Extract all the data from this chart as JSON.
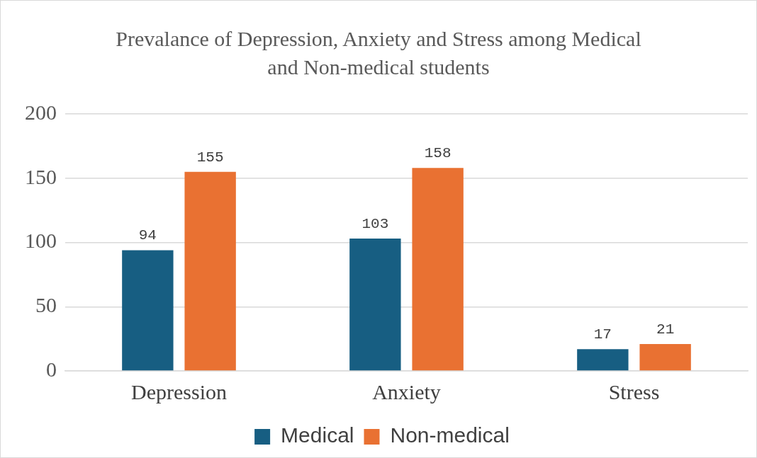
{
  "chart_data": {
    "type": "bar",
    "title": "Prevalance of Depression, Anxiety and Stress among Medical and Non-medical students",
    "categories": [
      "Depression",
      "Anxiety",
      "Stress"
    ],
    "series": [
      {
        "name": "Medical",
        "color": "#175e82",
        "values": [
          94,
          103,
          17
        ]
      },
      {
        "name": "Non-medical",
        "color": "#e97132",
        "values": [
          155,
          158,
          21
        ]
      }
    ],
    "ylim": [
      0,
      200
    ],
    "yticks": [
      0,
      50,
      100,
      150,
      200
    ],
    "grid": "y",
    "legend": "bottom",
    "data_labels": true
  }
}
